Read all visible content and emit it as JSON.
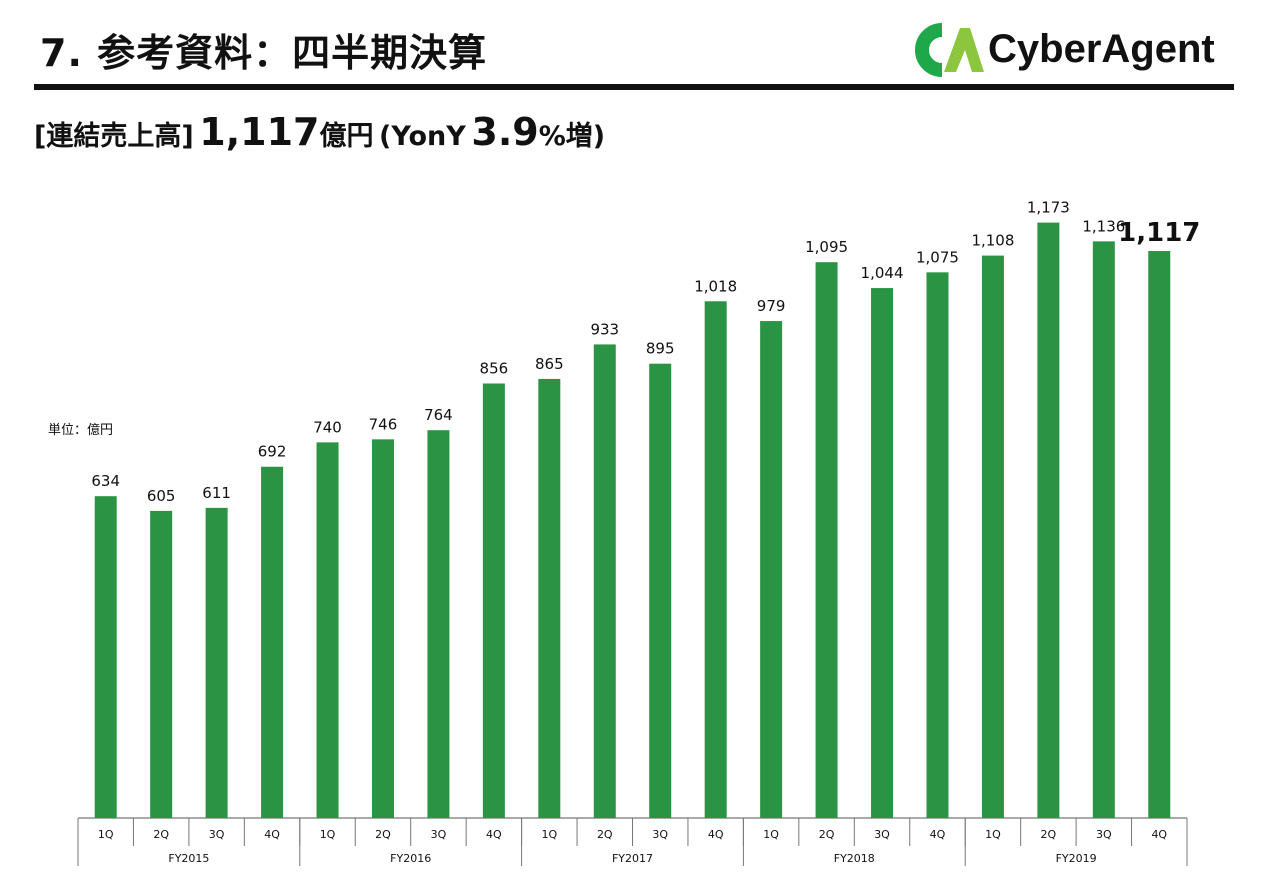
{
  "header": {
    "title": "7. 参考資料：四半期決算",
    "brand": "CyberAgent"
  },
  "subtitle": {
    "label": "[連結売上高]",
    "value": "1,117",
    "unit": "億円",
    "yoy_open": "(YonY",
    "yoy_value": "3.9",
    "yoy_close": "%増)"
  },
  "unit_label": "単位：億円",
  "colors": {
    "bar": "#2a9444",
    "brand_green": "#1ea84a",
    "brand_light": "#8cc63f"
  },
  "chart_data": {
    "type": "bar",
    "title": "",
    "xlabel": "",
    "ylabel": "",
    "ylim": [
      0,
      1200
    ],
    "grid": false,
    "categories": [
      "1Q",
      "2Q",
      "3Q",
      "4Q",
      "1Q",
      "2Q",
      "3Q",
      "4Q",
      "1Q",
      "2Q",
      "3Q",
      "4Q",
      "1Q",
      "2Q",
      "3Q",
      "4Q",
      "1Q",
      "2Q",
      "3Q",
      "4Q"
    ],
    "groups": [
      "FY2015",
      "FY2016",
      "FY2017",
      "FY2018",
      "FY2019"
    ],
    "values": [
      634,
      605,
      611,
      692,
      740,
      746,
      764,
      856,
      865,
      933,
      895,
      1018,
      979,
      1095,
      1044,
      1075,
      1108,
      1173,
      1136,
      1117
    ],
    "data_labels": [
      "634",
      "605",
      "611",
      "692",
      "740",
      "746",
      "764",
      "856",
      "865",
      "933",
      "895",
      "1,018",
      "979",
      "1,095",
      "1,044",
      "1,075",
      "1,108",
      "1,173",
      "1,136",
      "1,117"
    ]
  }
}
